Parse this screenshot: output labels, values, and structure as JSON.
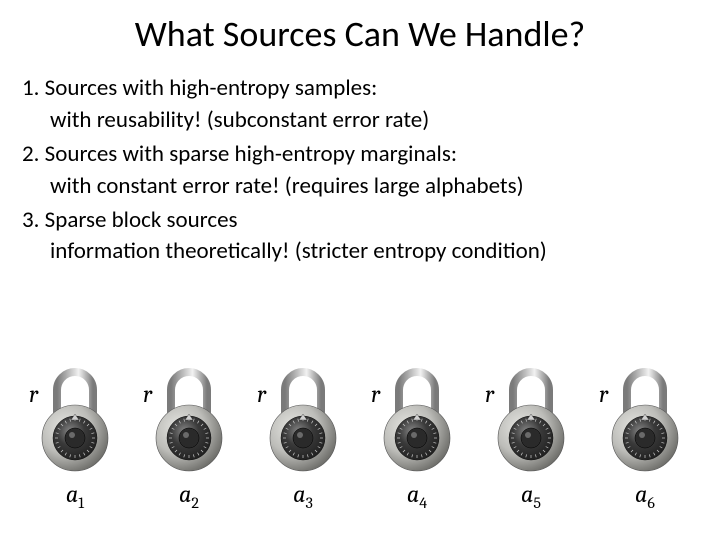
{
  "title": "What Sources Can We Handle?",
  "lines": {
    "l1": "1. Sources with high-entropy samples:",
    "l1b": "with reusability! (subconstant error rate)",
    "l2": "2. Sources with sparse high-entropy marginals:",
    "l2b": "with constant error rate! (requires large alphabets)",
    "l3": "3. Sparse block sources",
    "l3b": "information theoretically! (stricter entropy condition)"
  },
  "locks": [
    {
      "r": "r",
      "a_base": "a",
      "a_sub": "1"
    },
    {
      "r": "r",
      "a_base": "a",
      "a_sub": "2"
    },
    {
      "r": "r",
      "a_base": "a",
      "a_sub": "3"
    },
    {
      "r": "r",
      "a_base": "a",
      "a_sub": "4"
    },
    {
      "r": "r",
      "a_base": "a",
      "a_sub": "5"
    },
    {
      "r": "r",
      "a_base": "a",
      "a_sub": "6"
    }
  ],
  "style": {
    "title_fontsize": 36,
    "body_fontsize": 23,
    "label_fontsize": 24,
    "sub_fontsize": 16,
    "background": "#ffffff",
    "text_color": "#000000",
    "lock_body_fill": "#bdbdb9",
    "lock_body_highlight": "#e6e6e2",
    "lock_body_shadow": "#6f6f6b",
    "shackle_color": "#c9c9c9",
    "shackle_shadow": "#7a7a7a",
    "dial_outer": "#3a3a3a",
    "dial_inner": "#1e1e1e",
    "dial_light": "#888888",
    "pointer_color": "#d0d0d0",
    "lock_width": 80,
    "lock_height": 110
  }
}
